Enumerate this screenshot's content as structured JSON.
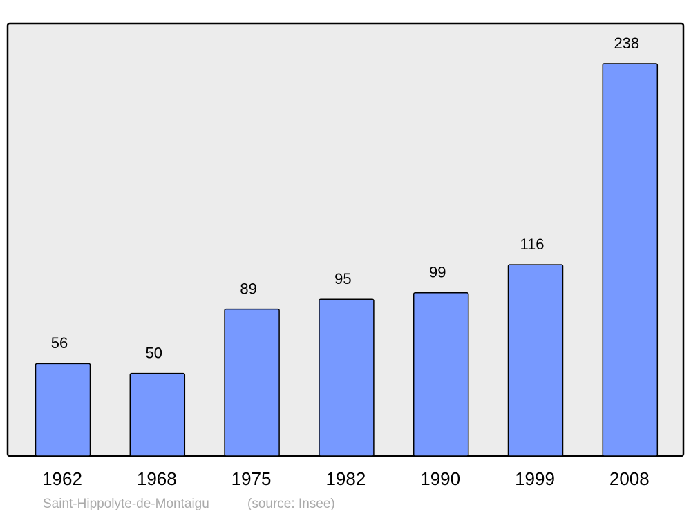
{
  "chart_data": {
    "type": "bar",
    "caption": "Saint-Hippolyte-de-Montaigu",
    "source": "(source: Insee)",
    "categories": [
      "1962",
      "1968",
      "1975",
      "1982",
      "1990",
      "1999",
      "2008"
    ],
    "values": [
      56,
      50,
      89,
      95,
      99,
      116,
      238
    ],
    "color": "#7799ff"
  }
}
